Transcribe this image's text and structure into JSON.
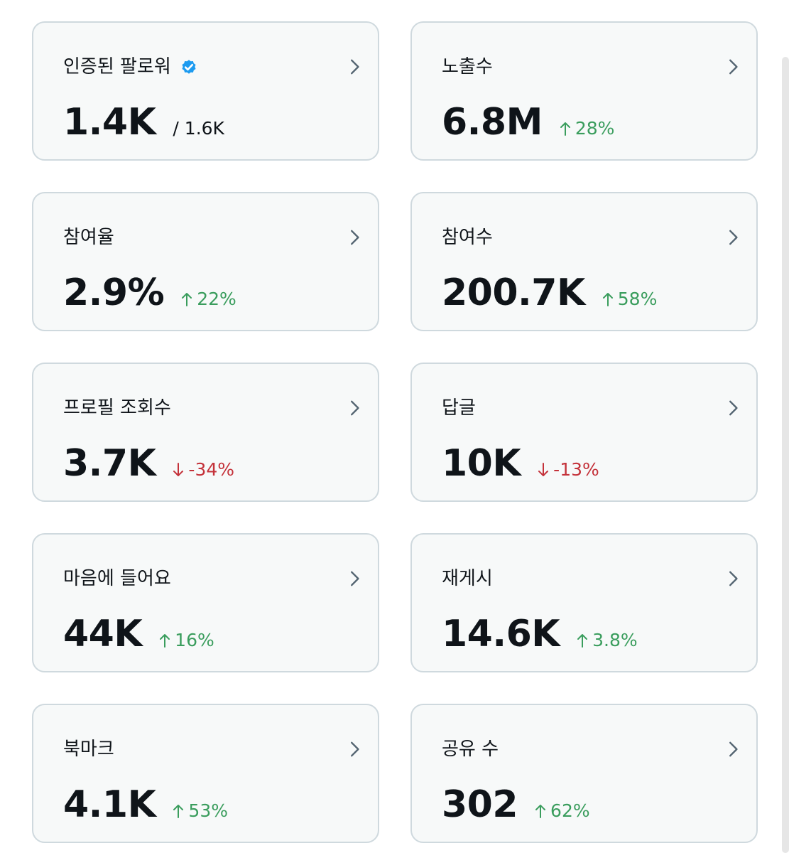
{
  "colors": {
    "card_bg": "#f7f9f9",
    "card_border": "#cfd9de",
    "text": "#0f1419",
    "up": "#3a9d5d",
    "down": "#c4323a",
    "verified": "#1d9bf0"
  },
  "cards": [
    {
      "title": "인증된 팔로워",
      "value": "1.4K",
      "sub": "/ 1.6K",
      "icon": "verified-badge-icon"
    },
    {
      "title": "노출수",
      "value": "6.8M",
      "delta": "28%",
      "direction": "up"
    },
    {
      "title": "참여율",
      "value": "2.9%",
      "delta": "22%",
      "direction": "up"
    },
    {
      "title": "참여수",
      "value": "200.7K",
      "delta": "58%",
      "direction": "up"
    },
    {
      "title": "프로필 조회수",
      "value": "3.7K",
      "delta": "-34%",
      "direction": "down"
    },
    {
      "title": "답글",
      "value": "10K",
      "delta": "-13%",
      "direction": "down"
    },
    {
      "title": "마음에 들어요",
      "value": "44K",
      "delta": "16%",
      "direction": "up"
    },
    {
      "title": "재게시",
      "value": "14.6K",
      "delta": "3.8%",
      "direction": "up"
    },
    {
      "title": "북마크",
      "value": "4.1K",
      "delta": "53%",
      "direction": "up"
    },
    {
      "title": "공유 수",
      "value": "302",
      "delta": "62%",
      "direction": "up"
    }
  ]
}
